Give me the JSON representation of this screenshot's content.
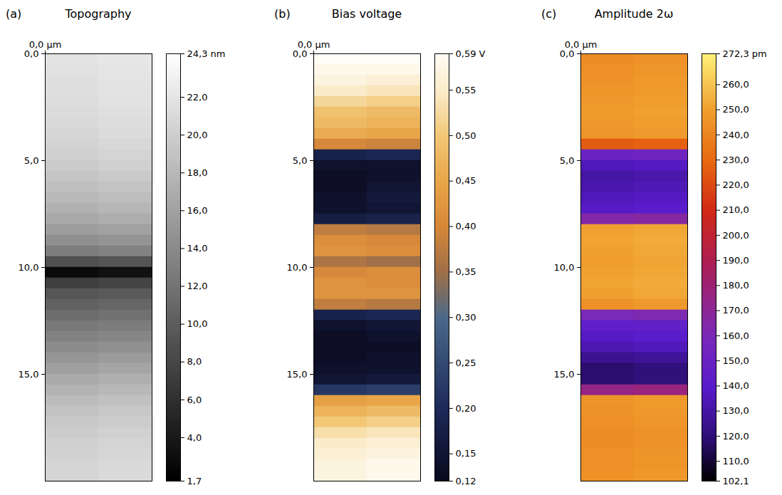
{
  "chart_data": [
    {
      "type": "heatmap",
      "panel_label": "(a)",
      "title": "Topography",
      "x": [
        1.25,
        3.75
      ],
      "y": [
        0.25,
        0.75,
        1.25,
        1.75,
        2.25,
        2.75,
        3.25,
        3.75,
        4.25,
        4.75,
        5.25,
        5.75,
        6.25,
        6.75,
        7.25,
        7.75,
        8.25,
        8.75,
        9.25,
        9.75,
        10.25,
        10.75,
        11.25,
        11.75,
        12.25,
        12.75,
        13.25,
        13.75,
        14.25,
        14.75,
        15.25,
        15.75,
        16.25,
        16.75,
        17.25,
        17.75,
        18.25,
        18.75,
        19.25,
        19.75
      ],
      "z": [
        [
          21.8,
          22.2
        ],
        [
          21.6,
          22.0
        ],
        [
          21.5,
          21.9
        ],
        [
          21.4,
          21.8
        ],
        [
          21.3,
          21.7
        ],
        [
          21.1,
          21.5
        ],
        [
          20.9,
          21.3
        ],
        [
          20.7,
          21.1
        ],
        [
          20.4,
          20.8
        ],
        [
          20.1,
          20.5
        ],
        [
          19.7,
          20.1
        ],
        [
          19.2,
          19.6
        ],
        [
          18.7,
          19.1
        ],
        [
          18.1,
          18.5
        ],
        [
          17.4,
          17.8
        ],
        [
          16.6,
          17.0
        ],
        [
          15.6,
          16.0
        ],
        [
          14.4,
          14.8
        ],
        [
          12.8,
          13.2
        ],
        [
          8.8,
          9.2
        ],
        [
          2.6,
          3.2
        ],
        [
          7.3,
          7.7
        ],
        [
          9.3,
          9.7
        ],
        [
          10.3,
          10.7
        ],
        [
          11.3,
          11.7
        ],
        [
          12.3,
          12.7
        ],
        [
          13.2,
          13.6
        ],
        [
          14.1,
          14.5
        ],
        [
          15.0,
          15.4
        ],
        [
          15.9,
          16.3
        ],
        [
          16.8,
          17.2
        ],
        [
          17.6,
          18.0
        ],
        [
          18.3,
          18.7
        ],
        [
          18.9,
          19.3
        ],
        [
          19.4,
          19.8
        ],
        [
          19.8,
          20.2
        ],
        [
          20.1,
          20.5
        ],
        [
          20.3,
          20.7
        ],
        [
          20.5,
          20.9
        ],
        [
          20.6,
          21.0
        ]
      ],
      "xlim": [
        0,
        5
      ],
      "ylim": [
        0,
        20
      ],
      "xticks": [
        {
          "value": 0,
          "label": "0,0 µm"
        }
      ],
      "yticks": [
        {
          "value": 0,
          "label": "0,0"
        },
        {
          "value": 5,
          "label": "5,0"
        },
        {
          "value": 10,
          "label": "10,0"
        },
        {
          "value": 15,
          "label": "15,0"
        }
      ],
      "colorbar_lim": [
        1.7,
        24.3
      ],
      "colorbar_ticks": [
        {
          "value": 1.7,
          "label": "1,7"
        },
        {
          "value": 4,
          "label": "4,0"
        },
        {
          "value": 6,
          "label": "6,0"
        },
        {
          "value": 8,
          "label": "8,0"
        },
        {
          "value": 10,
          "label": "10,0"
        },
        {
          "value": 12,
          "label": "12,0"
        },
        {
          "value": 14,
          "label": "14,0"
        },
        {
          "value": 16,
          "label": "16,0"
        },
        {
          "value": 18,
          "label": "18,0"
        },
        {
          "value": 20,
          "label": "20,0"
        },
        {
          "value": 22,
          "label": "22,0"
        },
        {
          "value": 24.3,
          "label": "24,3 nm"
        }
      ]
    },
    {
      "type": "heatmap",
      "panel_label": "(b)",
      "title": "Bias voltage",
      "x": [
        1.25,
        3.75
      ],
      "y": [
        0.25,
        0.75,
        1.25,
        1.75,
        2.25,
        2.75,
        3.25,
        3.75,
        4.25,
        4.75,
        5.25,
        5.75,
        6.25,
        6.75,
        7.25,
        7.75,
        8.25,
        8.75,
        9.25,
        9.75,
        10.25,
        10.75,
        11.25,
        11.75,
        12.25,
        12.75,
        13.25,
        13.75,
        14.25,
        14.75,
        15.25,
        15.75,
        16.25,
        16.75,
        17.25,
        17.75,
        18.25,
        18.75,
        19.25,
        19.75
      ],
      "z": [
        [
          0.59,
          0.59
        ],
        [
          0.58,
          0.58
        ],
        [
          0.57,
          0.56
        ],
        [
          0.55,
          0.54
        ],
        [
          0.52,
          0.51
        ],
        [
          0.49,
          0.48
        ],
        [
          0.48,
          0.47
        ],
        [
          0.46,
          0.45
        ],
        [
          0.4,
          0.39
        ],
        [
          0.18,
          0.19
        ],
        [
          0.14,
          0.14
        ],
        [
          0.13,
          0.14
        ],
        [
          0.13,
          0.15
        ],
        [
          0.14,
          0.16
        ],
        [
          0.14,
          0.15
        ],
        [
          0.17,
          0.18
        ],
        [
          0.38,
          0.37
        ],
        [
          0.41,
          0.4
        ],
        [
          0.42,
          0.41
        ],
        [
          0.36,
          0.35
        ],
        [
          0.4,
          0.41
        ],
        [
          0.42,
          0.41
        ],
        [
          0.42,
          0.42
        ],
        [
          0.38,
          0.37
        ],
        [
          0.18,
          0.19
        ],
        [
          0.14,
          0.15
        ],
        [
          0.13,
          0.14
        ],
        [
          0.13,
          0.13
        ],
        [
          0.13,
          0.14
        ],
        [
          0.14,
          0.14
        ],
        [
          0.15,
          0.16
        ],
        [
          0.22,
          0.23
        ],
        [
          0.44,
          0.45
        ],
        [
          0.47,
          0.48
        ],
        [
          0.5,
          0.51
        ],
        [
          0.53,
          0.54
        ],
        [
          0.55,
          0.56
        ],
        [
          0.56,
          0.57
        ],
        [
          0.57,
          0.58
        ],
        [
          0.57,
          0.58
        ]
      ],
      "xlim": [
        0,
        5
      ],
      "ylim": [
        0,
        20
      ],
      "xticks": [
        {
          "value": 0,
          "label": "0,0 µm"
        }
      ],
      "yticks": [
        {
          "value": 0,
          "label": "0,0"
        },
        {
          "value": 5,
          "label": "5,0"
        },
        {
          "value": 10,
          "label": "10,0"
        },
        {
          "value": 15,
          "label": "15,0"
        }
      ],
      "colorbar_lim": [
        0.12,
        0.59
      ],
      "colorbar_ticks": [
        {
          "value": 0.12,
          "label": "0,12"
        },
        {
          "value": 0.15,
          "label": "0,15"
        },
        {
          "value": 0.2,
          "label": "0,20"
        },
        {
          "value": 0.25,
          "label": "0,25"
        },
        {
          "value": 0.3,
          "label": "0,30"
        },
        {
          "value": 0.35,
          "label": "0,35"
        },
        {
          "value": 0.4,
          "label": "0,40"
        },
        {
          "value": 0.45,
          "label": "0,45"
        },
        {
          "value": 0.5,
          "label": "0,50"
        },
        {
          "value": 0.55,
          "label": "0,55"
        },
        {
          "value": 0.59,
          "label": "0,59 V"
        }
      ]
    },
    {
      "type": "heatmap",
      "panel_label": "(c)",
      "title": "Amplitude 2ω",
      "x": [
        1.25,
        3.75
      ],
      "y": [
        0.25,
        0.75,
        1.25,
        1.75,
        2.25,
        2.75,
        3.25,
        3.75,
        4.25,
        4.75,
        5.25,
        5.75,
        6.25,
        6.75,
        7.25,
        7.75,
        8.25,
        8.75,
        9.25,
        9.75,
        10.25,
        10.75,
        11.25,
        11.75,
        12.25,
        12.75,
        13.25,
        13.75,
        14.25,
        14.75,
        15.25,
        15.75,
        16.25,
        16.75,
        17.25,
        17.75,
        18.25,
        18.75,
        19.25,
        19.75
      ],
      "z": [
        [
          243,
          245
        ],
        [
          244,
          246
        ],
        [
          245,
          247
        ],
        [
          246,
          248
        ],
        [
          247,
          249
        ],
        [
          248,
          250
        ],
        [
          247,
          249
        ],
        [
          246,
          248
        ],
        [
          225,
          227
        ],
        [
          150,
          152
        ],
        [
          135,
          137
        ],
        [
          130,
          132
        ],
        [
          132,
          134
        ],
        [
          135,
          137
        ],
        [
          138,
          140
        ],
        [
          165,
          167
        ],
        [
          250,
          252
        ],
        [
          251,
          253
        ],
        [
          250,
          252
        ],
        [
          249,
          251
        ],
        [
          250,
          252
        ],
        [
          251,
          253
        ],
        [
          250,
          252
        ],
        [
          245,
          247
        ],
        [
          160,
          162
        ],
        [
          142,
          144
        ],
        [
          138,
          140
        ],
        [
          133,
          135
        ],
        [
          125,
          127
        ],
        [
          118,
          120
        ],
        [
          118,
          120
        ],
        [
          175,
          177
        ],
        [
          246,
          248
        ],
        [
          245,
          247
        ],
        [
          244,
          246
        ],
        [
          243,
          245
        ],
        [
          243,
          245
        ],
        [
          244,
          246
        ],
        [
          244,
          246
        ],
        [
          245,
          247
        ]
      ],
      "xlim": [
        0,
        5
      ],
      "ylim": [
        0,
        20
      ],
      "xticks": [
        {
          "value": 0,
          "label": "0,0 µm"
        }
      ],
      "yticks": [
        {
          "value": 0,
          "label": "0,0"
        },
        {
          "value": 5,
          "label": "5,0"
        },
        {
          "value": 10,
          "label": "10,0"
        },
        {
          "value": 15,
          "label": "15,0"
        }
      ],
      "colorbar_lim": [
        102.1,
        272.3
      ],
      "colorbar_ticks": [
        {
          "value": 102.1,
          "label": "102,1"
        },
        {
          "value": 110,
          "label": "110,0"
        },
        {
          "value": 120,
          "label": "120,0"
        },
        {
          "value": 130,
          "label": "130,0"
        },
        {
          "value": 140,
          "label": "140,0"
        },
        {
          "value": 150,
          "label": "150,0"
        },
        {
          "value": 160,
          "label": "160,0"
        },
        {
          "value": 170,
          "label": "170,0"
        },
        {
          "value": 180,
          "label": "180,0"
        },
        {
          "value": 190,
          "label": "190,0"
        },
        {
          "value": 200,
          "label": "200,0"
        },
        {
          "value": 210,
          "label": "210,0"
        },
        {
          "value": 220,
          "label": "220,0"
        },
        {
          "value": 230,
          "label": "230,0"
        },
        {
          "value": 240,
          "label": "240,0"
        },
        {
          "value": 250,
          "label": "250,0"
        },
        {
          "value": 260,
          "label": "260,0"
        },
        {
          "value": 272.3,
          "label": "272,3 pm"
        }
      ]
    }
  ]
}
